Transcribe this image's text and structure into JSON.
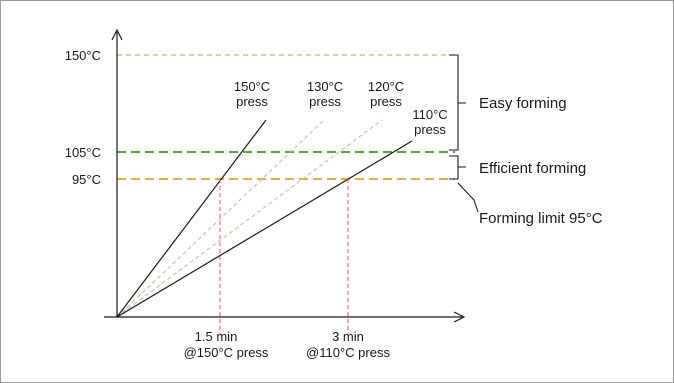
{
  "y_axis": {
    "ticks": [
      "150°C",
      "105°C",
      "95°C"
    ]
  },
  "press_lines": [
    {
      "temp": "150°C",
      "word": "press"
    },
    {
      "temp": "130°C",
      "word": "press"
    },
    {
      "temp": "120°C",
      "word": "press"
    },
    {
      "temp": "110°C",
      "word": "press"
    }
  ],
  "zones": {
    "easy": "Easy forming",
    "efficient": "Efficient forming",
    "limit": "Forming limit 95°C"
  },
  "x_marks": [
    {
      "time": "1.5 min",
      "note": "@150°C press"
    },
    {
      "time": "3 min",
      "note": "@110°C press"
    }
  ],
  "colors": {
    "line_150": "#8fd16a",
    "line_105": "#5aa832",
    "line_95": "#f2a93b",
    "dashed_press": "#bcc49a",
    "drop_lines": "#e0566b",
    "solid": "#1a1a1a"
  }
}
